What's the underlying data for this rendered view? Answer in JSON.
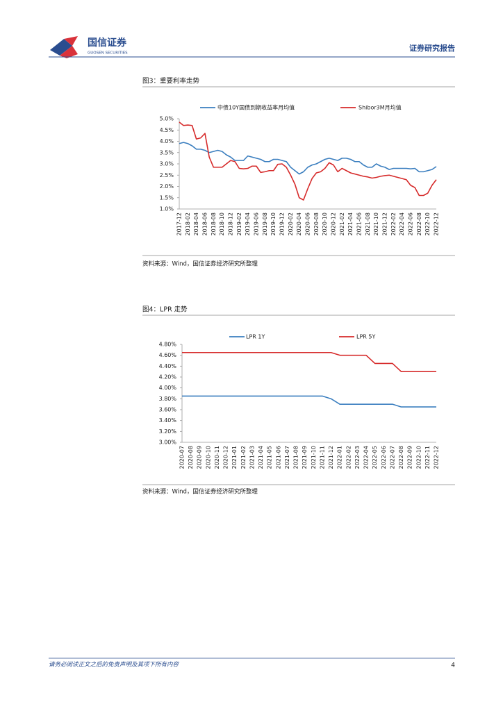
{
  "header": {
    "brand": "国信证券",
    "brand_en": "GUOSEN SECURITIES",
    "report_type": "证券研究报告"
  },
  "footer": {
    "disclaimer": "请务必阅读正文之后的免责声明及其项下所有内容",
    "page": "4"
  },
  "chart_data": [
    {
      "type": "line",
      "title": "图3：重要利率走势",
      "source": "资料来源：Wind，国信证券经济研究所整理",
      "categories": [
        "2017-12",
        null,
        "2018-02",
        null,
        "2018-04",
        null,
        "2018-06",
        null,
        "2018-08",
        null,
        "2018-10",
        null,
        "2018-12",
        null,
        "2019-02",
        null,
        "2019-04",
        null,
        "2019-06",
        null,
        "2019-08",
        null,
        "2019-10",
        null,
        "2019-12",
        null,
        "2020-02",
        null,
        "2020-04",
        null,
        "2020-06",
        null,
        "2020-08",
        null,
        "2020-10",
        null,
        "2020-12",
        null,
        "2021-02",
        null,
        "2021-04",
        null,
        "2021-06",
        null,
        "2021-08",
        null,
        "2021-10",
        null,
        "2021-12",
        null,
        "2022-02",
        null,
        "2022-04",
        null,
        "2022-06",
        null,
        "2022-08",
        null,
        "2022-10",
        null,
        "2022-12"
      ],
      "series": [
        {
          "name": "中债10Y国债到期收益率月均值",
          "color": "#3a7ebf",
          "values": [
            3.9,
            3.95,
            3.9,
            3.8,
            3.65,
            3.65,
            3.6,
            3.5,
            3.55,
            3.6,
            3.55,
            3.4,
            3.3,
            3.15,
            3.15,
            3.15,
            3.35,
            3.3,
            3.25,
            3.2,
            3.1,
            3.1,
            3.2,
            3.2,
            3.15,
            3.1,
            2.85,
            2.7,
            2.55,
            2.65,
            2.85,
            2.95,
            3.0,
            3.1,
            3.2,
            3.25,
            3.2,
            3.15,
            3.25,
            3.25,
            3.2,
            3.1,
            3.1,
            2.95,
            2.85,
            2.85,
            3.0,
            2.9,
            2.85,
            2.75,
            2.8,
            2.8,
            2.8,
            2.8,
            2.78,
            2.8,
            2.65,
            2.65,
            2.7,
            2.75,
            2.88
          ]
        },
        {
          "name": "Shibor3M月均值",
          "color": "#d62a2a",
          "values": [
            4.85,
            4.7,
            4.72,
            4.7,
            4.1,
            4.15,
            4.35,
            3.3,
            2.85,
            2.85,
            2.85,
            3.0,
            3.15,
            3.1,
            2.8,
            2.78,
            2.8,
            2.9,
            2.9,
            2.62,
            2.65,
            2.7,
            2.7,
            2.98,
            3.0,
            2.85,
            2.5,
            2.1,
            1.5,
            1.4,
            1.9,
            2.35,
            2.6,
            2.65,
            2.8,
            3.05,
            2.95,
            2.65,
            2.8,
            2.7,
            2.6,
            2.55,
            2.5,
            2.45,
            2.42,
            2.37,
            2.4,
            2.45,
            2.48,
            2.5,
            2.45,
            2.4,
            2.35,
            2.3,
            2.05,
            1.95,
            1.6,
            1.6,
            1.7,
            2.05,
            2.3
          ]
        }
      ],
      "ylim": [
        1,
        5
      ],
      "yticks": [
        {
          "value": 1,
          "label": "1.0%"
        },
        {
          "value": 1.5,
          "label": "1.5%"
        },
        {
          "value": 2,
          "label": "2.0%"
        },
        {
          "value": 2.5,
          "label": "2.5%"
        },
        {
          "value": 3,
          "label": "3.0%"
        },
        {
          "value": 3.5,
          "label": "3.5%"
        },
        {
          "value": 4,
          "label": "4.0%"
        },
        {
          "value": 4.5,
          "label": "4.5%"
        },
        {
          "value": 5,
          "label": "5.0%"
        }
      ],
      "grid": false
    },
    {
      "type": "line",
      "title": "图4：LPR 走势",
      "source": "资料来源：Wind，国信证券经济研究所整理",
      "categories": [
        "2020-07",
        "2020-08",
        "2020-09",
        "2020-10",
        "2020-11",
        "2020-12",
        "2021-01",
        "2021-02",
        "2021-03",
        "2021-04",
        "2021-05",
        "2021-06",
        "2021-07",
        "2021-08",
        "2021-09",
        "2021-10",
        "2021-11",
        "2021-12",
        "2022-01",
        "2022-02",
        "2022-03",
        "2022-04",
        "2022-05",
        "2022-06",
        "2022-07",
        "2022-08",
        "2022-09",
        "2022-10",
        "2022-11",
        "2022-12"
      ],
      "series": [
        {
          "name": "LPR 1Y",
          "color": "#3a7ebf",
          "values": [
            3.85,
            3.85,
            3.85,
            3.85,
            3.85,
            3.85,
            3.85,
            3.85,
            3.85,
            3.85,
            3.85,
            3.85,
            3.85,
            3.85,
            3.85,
            3.85,
            3.85,
            3.8,
            3.7,
            3.7,
            3.7,
            3.7,
            3.7,
            3.7,
            3.7,
            3.65,
            3.65,
            3.65,
            3.65,
            3.65
          ]
        },
        {
          "name": "LPR 5Y",
          "color": "#d62a2a",
          "values": [
            4.65,
            4.65,
            4.65,
            4.65,
            4.65,
            4.65,
            4.65,
            4.65,
            4.65,
            4.65,
            4.65,
            4.65,
            4.65,
            4.65,
            4.65,
            4.65,
            4.65,
            4.65,
            4.6,
            4.6,
            4.6,
            4.6,
            4.45,
            4.45,
            4.45,
            4.3,
            4.3,
            4.3,
            4.3,
            4.3
          ]
        }
      ],
      "ylim": [
        3,
        4.8
      ],
      "yticks": [
        {
          "value": 3,
          "label": "3.00%"
        },
        {
          "value": 3.2,
          "label": "3.20%"
        },
        {
          "value": 3.4,
          "label": "3.40%"
        },
        {
          "value": 3.6,
          "label": "3.60%"
        },
        {
          "value": 3.8,
          "label": "3.80%"
        },
        {
          "value": 4,
          "label": "4.00%"
        },
        {
          "value": 4.2,
          "label": "4.20%"
        },
        {
          "value": 4.4,
          "label": "4.40%"
        },
        {
          "value": 4.6,
          "label": "4.60%"
        },
        {
          "value": 4.8,
          "label": "4.80%"
        }
      ],
      "grid": false
    }
  ]
}
